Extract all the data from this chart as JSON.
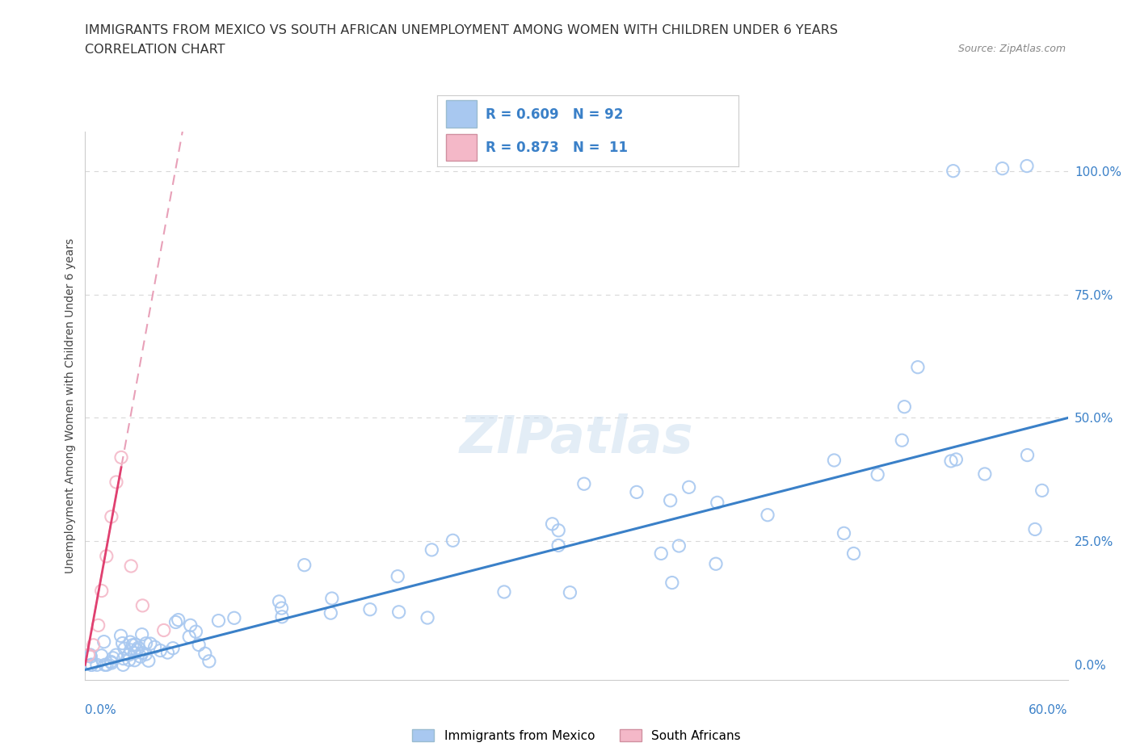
{
  "title_line1": "IMMIGRANTS FROM MEXICO VS SOUTH AFRICAN UNEMPLOYMENT AMONG WOMEN WITH CHILDREN UNDER 6 YEARS",
  "title_line2": "CORRELATION CHART",
  "source": "Source: ZipAtlas.com",
  "xlabel_bottom_left": "0.0%",
  "xlabel_bottom_right": "60.0%",
  "ylabel": "Unemployment Among Women with Children Under 6 years",
  "ylabel_right_ticks": [
    "100.0%",
    "75.0%",
    "50.0%",
    "25.0%",
    "0.0%"
  ],
  "ylabel_right_values": [
    100.0,
    75.0,
    50.0,
    25.0,
    0.0
  ],
  "xmin": 0.0,
  "xmax": 60.0,
  "ymin": -3.0,
  "ymax": 108.0,
  "watermark": "ZIPatlas",
  "blue_scatter_color": "#a8c8f0",
  "blue_scatter_edge": "#7aafd4",
  "pink_scatter_color": "#f4b8c8",
  "pink_scatter_edge": "#e07090",
  "blue_line_color": "#3a80c8",
  "pink_line_color": "#e04070",
  "pink_dash_color": "#e8a0b8",
  "grid_color": "#d8d8d8",
  "background_color": "#ffffff",
  "title_color": "#333333",
  "legend_text_color": "#3a80c8",
  "source_color": "#888888"
}
